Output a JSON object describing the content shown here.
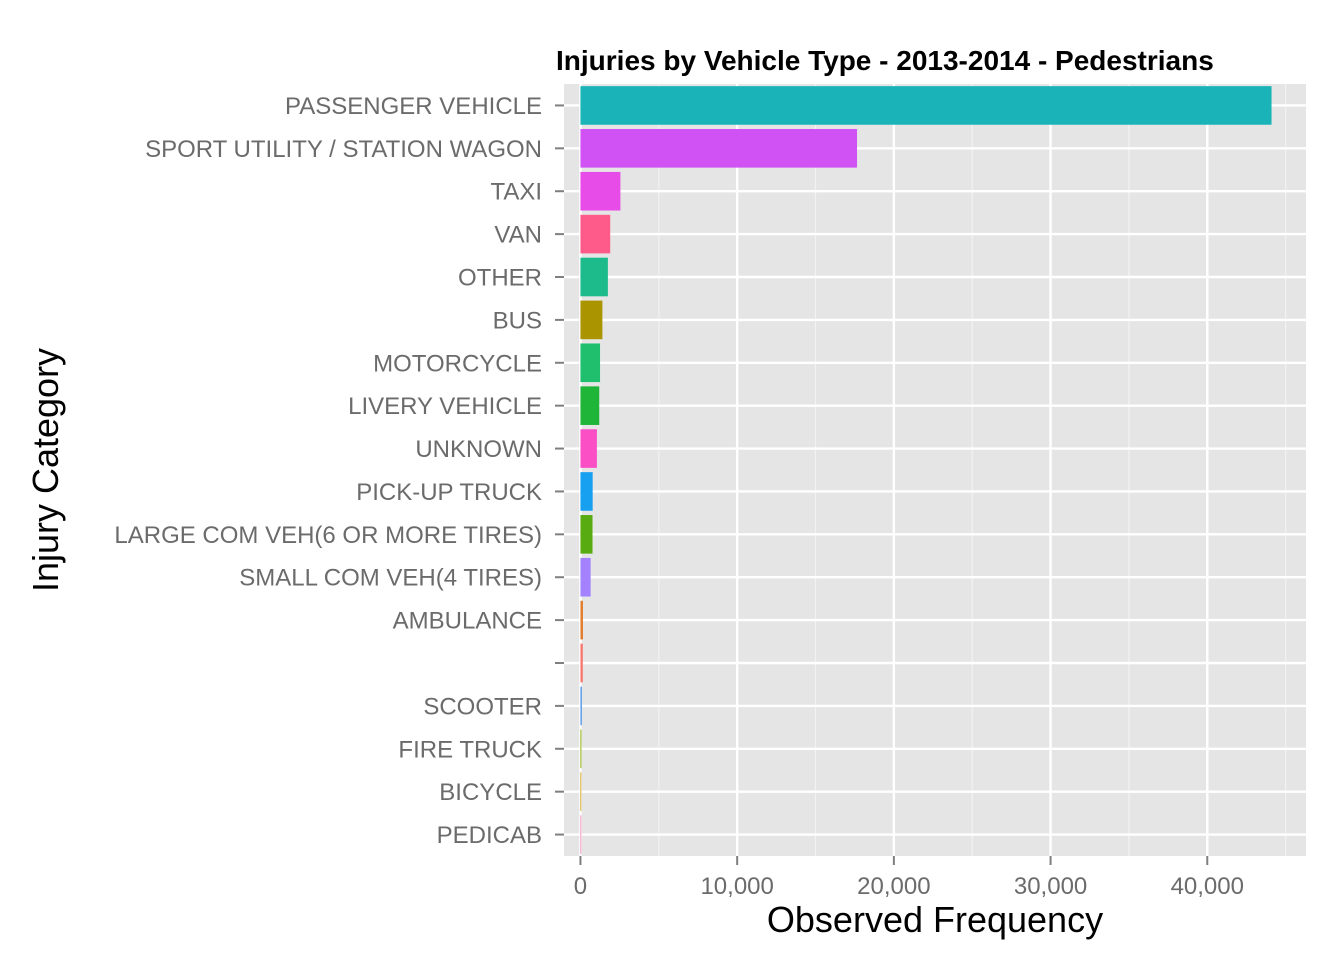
{
  "chart_data": {
    "type": "bar",
    "orientation": "horizontal",
    "title": "Injuries by Vehicle Type - 2013-2014 - Pedestrians",
    "xlabel": "Observed Frequency",
    "ylabel": "Injury Category",
    "xlim": [
      -1050,
      46300
    ],
    "xticks": [
      0,
      10000,
      20000,
      30000,
      40000
    ],
    "xtick_labels": [
      "0",
      "10,000",
      "20,000",
      "30,000",
      "40,000"
    ],
    "grid": true,
    "legend": "none",
    "categories": [
      "PASSENGER VEHICLE",
      "SPORT UTILITY / STATION WAGON",
      "TAXI",
      "VAN",
      "OTHER",
      "BUS",
      "MOTORCYCLE",
      "LIVERY VEHICLE",
      "UNKNOWN",
      "PICK-UP TRUCK",
      "LARGE COM VEH(6 OR MORE TIRES)",
      "SMALL COM VEH(4 TIRES)",
      "AMBULANCE",
      "",
      "SCOOTER",
      "FIRE TRUCK",
      "BICYCLE",
      "PEDICAB"
    ],
    "values": [
      44100,
      17650,
      2550,
      1900,
      1750,
      1400,
      1250,
      1200,
      1050,
      780,
      770,
      650,
      160,
      150,
      90,
      60,
      15,
      5
    ],
    "colors": [
      "#1ab3b7",
      "#d052f4",
      "#e84ce8",
      "#ff5b8a",
      "#1dba8c",
      "#aa9400",
      "#1fbf6d",
      "#1eb538",
      "#fb4fc6",
      "#18a0f0",
      "#58ac12",
      "#a381ff",
      "#e27c2f",
      "#f8766d",
      "#5598e8",
      "#87ad00",
      "#c99800",
      "#eb7eb1"
    ],
    "panel_background": "#e5e5e5",
    "grid_color": "#ffffff"
  }
}
